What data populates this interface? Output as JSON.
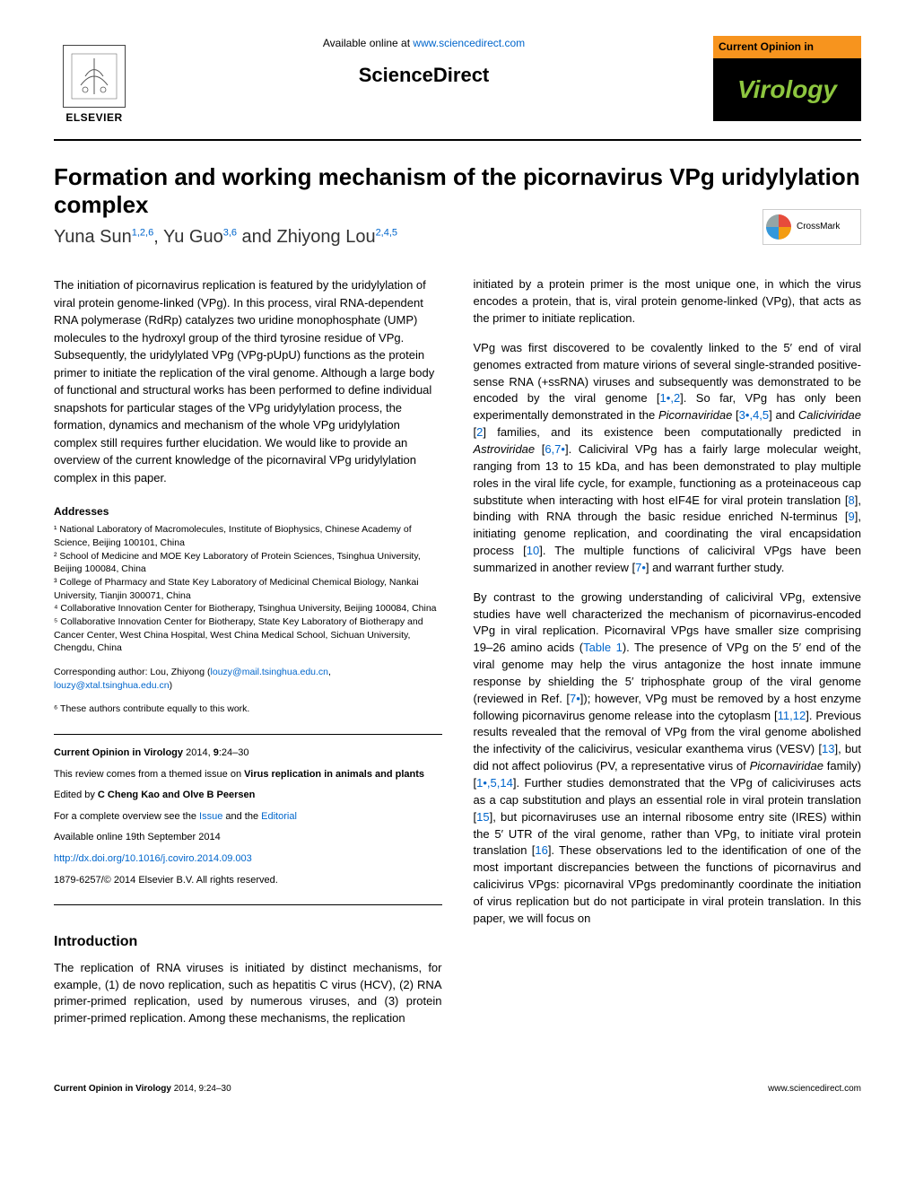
{
  "header": {
    "elsevier_label": "ELSEVIER",
    "available_text": "Available online at ",
    "available_url": "www.sciencedirect.com",
    "sciencedirect": "ScienceDirect",
    "journal_top": "Current Opinion in",
    "journal_bottom": "Virology"
  },
  "title": "Formation and working mechanism of the picornavirus VPg uridylylation complex",
  "authors_html": "Yuna Sun<sup>1,2,6</sup>, Yu Guo<sup>3,6</sup> and Zhiyong Lou<sup>2,4,5</sup>",
  "crossmark": "CrossMark",
  "abstract": "The initiation of picornavirus replication is featured by the uridylylation of viral protein genome-linked (VPg). In this process, viral RNA-dependent RNA polymerase (RdRp) catalyzes two uridine monophosphate (UMP) molecules to the hydroxyl group of the third tyrosine residue of VPg. Subsequently, the uridylylated VPg (VPg-pUpU) functions as the protein primer to initiate the replication of the viral genome. Although a large body of functional and structural works has been performed to define individual snapshots for particular stages of the VPg uridylylation process, the formation, dynamics and mechanism of the whole VPg uridylylation complex still requires further elucidation. We would like to provide an overview of the current knowledge of the picornaviral VPg uridylylation complex in this paper.",
  "addresses_heading": "Addresses",
  "addresses": [
    "¹ National Laboratory of Macromolecules, Institute of Biophysics, Chinese Academy of Science, Beijing 100101, China",
    "² School of Medicine and MOE Key Laboratory of Protein Sciences, Tsinghua University, Beijing 100084, China",
    "³ College of Pharmacy and State Key Laboratory of Medicinal Chemical Biology, Nankai University, Tianjin 300071, China",
    "⁴ Collaborative Innovation Center for Biotherapy, Tsinghua University, Beijing 100084, China",
    "⁵ Collaborative Innovation Center for Biotherapy, State Key Laboratory of Biotherapy and Cancer Center, West China Hospital, West China Medical School, Sichuan University, Chengdu, China"
  ],
  "corresponding_label": "Corresponding author: Lou, Zhiyong (",
  "corresponding_email1": "louzy@mail.tsinghua.edu.cn",
  "corresponding_email2": "louzy@xtal.tsinghua.edu.cn",
  "equal_note": "⁶ These authors contribute equally to this work.",
  "infobox": {
    "citation": "Current Opinion in Virology 2014, 9:24–30",
    "themed_prefix": "This review comes from a themed issue on ",
    "themed_bold": "Virus replication in animals and plants",
    "edited_prefix": "Edited by ",
    "editors": "C Cheng Kao and Olve B Peersen",
    "overview_prefix": "For a complete overview see the ",
    "overview_link1": "Issue",
    "overview_and": " and the ",
    "overview_link2": "Editorial",
    "available": "Available online 19th September 2014",
    "doi": "http://dx.doi.org/10.1016/j.coviro.2014.09.003",
    "copyright": "1879-6257/© 2014 Elsevier B.V. All rights reserved."
  },
  "intro_heading": "Introduction",
  "left_intro": "The replication of RNA viruses is initiated by distinct mechanisms, for example, (1) de novo replication, such as hepatitis C virus (HCV), (2) RNA primer-primed replication, used by numerous viruses, and (3) protein primer-primed replication. Among these mechanisms, the replication",
  "right_col": {
    "p1": "initiated by a protein primer is the most unique one, in which the virus encodes a protein, that is, viral protein genome-linked (VPg), that acts as the primer to initiate replication.",
    "p2_html": "VPg was first discovered to be covalently linked to the 5′ end of viral genomes extracted from mature virions of several single-stranded positive-sense RNA (+ssRNA) viruses and subsequently was demonstrated to be encoded by the viral genome [<span class='ref'>1•,2</span>]. So far, VPg has only been experimentally demonstrated in the <em>Picornaviridae</em> [<span class='ref'>3•,4,5</span>] and <em>Caliciviridae</em> [<span class='ref'>2</span>] families, and its existence been computationally predicted in <em>Astroviridae</em> [<span class='ref'>6,7•</span>]. Caliciviral VPg has a fairly large molecular weight, ranging from 13 to 15 kDa, and has been demonstrated to play multiple roles in the viral life cycle, for example, functioning as a proteinaceous cap substitute when interacting with host eIF4E for viral protein translation [<span class='ref'>8</span>], binding with RNA through the basic residue enriched N-terminus [<span class='ref'>9</span>], initiating genome replication, and coordinating the viral encapsidation process [<span class='ref'>10</span>]. The multiple functions of caliciviral VPgs have been summarized in another review [<span class='ref'>7•</span>] and warrant further study.",
    "p3_html": "By contrast to the growing understanding of caliciviral VPg, extensive studies have well characterized the mechanism of picornavirus-encoded VPg in viral replication. Picornaviral VPgs have smaller size comprising 19–26 amino acids (<span class='ref'>Table 1</span>). The presence of VPg on the 5′ end of the viral genome may help the virus antagonize the host innate immune response by shielding the 5′ triphosphate group of the viral genome (reviewed in Ref. [<span class='ref'>7•</span>]); however, VPg must be removed by a host enzyme following picornavirus genome release into the cytoplasm [<span class='ref'>11,12</span>]. Previous results revealed that the removal of VPg from the viral genome abolished the infectivity of the calicivirus, vesicular exanthema virus (VESV) [<span class='ref'>13</span>], but did not affect poliovirus (PV, a representative virus of <em>Picornaviridae</em> family) [<span class='ref'>1•,5,14</span>]. Further studies demonstrated that the VPg of caliciviruses acts as a cap substitution and plays an essential role in viral protein translation [<span class='ref'>15</span>], but picornaviruses use an internal ribosome entry site (IRES) within the 5′ UTR of the viral genome, rather than VPg, to initiate viral protein translation [<span class='ref'>16</span>]. These observations led to the identification of one of the most important discrepancies between the functions of picornavirus and calicivirus VPgs: picornaviral VPgs predominantly coordinate the initiation of virus replication but do not participate in viral protein translation. In this paper, we will focus on"
  },
  "footer": {
    "left_bold": "Current Opinion in Virology",
    "left_rest": " 2014, 9:24–30",
    "right": "www.sciencedirect.com"
  }
}
